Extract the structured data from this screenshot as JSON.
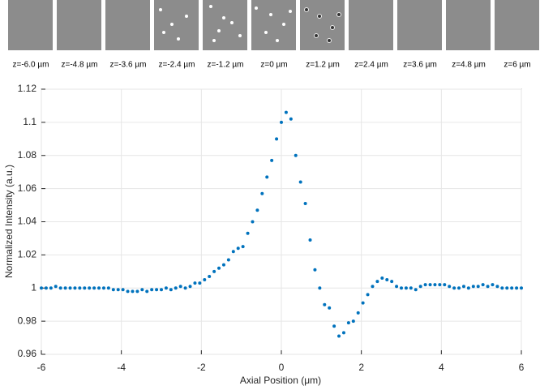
{
  "chart_data": {
    "type": "scatter",
    "panel_labels": [
      "z=-6.0 µm",
      "z=-4.8 µm",
      "z=-3.6 µm",
      "z=-2.4 µm",
      "z=-1.2 µm",
      "z=0 µm",
      "z=1.2 µm",
      "z=2.4 µm",
      "z=3.6 µm",
      "z=4.8 µm",
      "z=6 µm"
    ],
    "x_label": "Axial Position (μm)",
    "y_label": "Normalized Intensity (a.u.)",
    "xlim": [
      -6,
      6
    ],
    "xticks": [
      -6,
      -4,
      -2,
      0,
      2,
      4,
      6
    ],
    "ylim": [
      0.96,
      1.12
    ],
    "yticks": [
      0.96,
      0.98,
      1,
      1.02,
      1.04,
      1.06,
      1.08,
      1.1,
      1.12
    ],
    "grid": true,
    "color": "#0072bd",
    "x": [
      -6.0,
      -5.88,
      -5.76,
      -5.64,
      -5.52,
      -5.4,
      -5.28,
      -5.16,
      -5.04,
      -4.92,
      -4.8,
      -4.68,
      -4.56,
      -4.44,
      -4.32,
      -4.2,
      -4.08,
      -3.96,
      -3.84,
      -3.72,
      -3.6,
      -3.48,
      -3.36,
      -3.24,
      -3.12,
      -3.0,
      -2.88,
      -2.76,
      -2.64,
      -2.52,
      -2.4,
      -2.28,
      -2.16,
      -2.04,
      -1.92,
      -1.8,
      -1.68,
      -1.56,
      -1.44,
      -1.32,
      -1.2,
      -1.08,
      -0.96,
      -0.84,
      -0.72,
      -0.6,
      -0.48,
      -0.36,
      -0.24,
      -0.12,
      0.0,
      0.12,
      0.24,
      0.36,
      0.48,
      0.6,
      0.72,
      0.84,
      0.96,
      1.08,
      1.2,
      1.32,
      1.44,
      1.56,
      1.68,
      1.8,
      1.92,
      2.04,
      2.16,
      2.28,
      2.4,
      2.52,
      2.64,
      2.76,
      2.88,
      3.0,
      3.12,
      3.24,
      3.36,
      3.48,
      3.6,
      3.72,
      3.84,
      3.96,
      4.08,
      4.2,
      4.32,
      4.44,
      4.56,
      4.68,
      4.8,
      4.92,
      5.04,
      5.16,
      5.28,
      5.4,
      5.52,
      5.64,
      5.76,
      5.88,
      6.0
    ],
    "values": [
      1.0,
      1.0,
      1.0,
      1.001,
      1.0,
      1.0,
      1.0,
      1.0,
      1.0,
      1.0,
      1.0,
      1.0,
      1.0,
      1.0,
      1.0,
      0.999,
      0.999,
      0.999,
      0.998,
      0.998,
      0.998,
      0.999,
      0.998,
      0.999,
      0.999,
      0.999,
      1.0,
      0.999,
      1.0,
      1.001,
      1.0,
      1.001,
      1.003,
      1.003,
      1.005,
      1.007,
      1.01,
      1.012,
      1.014,
      1.017,
      1.022,
      1.024,
      1.025,
      1.033,
      1.04,
      1.047,
      1.057,
      1.067,
      1.077,
      1.09,
      1.1,
      1.106,
      1.102,
      1.08,
      1.064,
      1.051,
      1.029,
      1.011,
      1.0,
      0.99,
      0.988,
      0.977,
      0.971,
      0.973,
      0.979,
      0.98,
      0.985,
      0.991,
      0.996,
      1.001,
      1.004,
      1.006,
      1.005,
      1.004,
      1.001,
      1.0,
      1.0,
      1.0,
      0.999,
      1.001,
      1.002,
      1.002,
      1.002,
      1.002,
      1.002,
      1.001,
      1.0,
      1.0,
      1.001,
      1.0,
      1.001,
      1.001,
      1.002,
      1.001,
      1.002,
      1.001,
      1.0,
      1.0,
      1.0,
      1.0,
      1.0
    ]
  }
}
